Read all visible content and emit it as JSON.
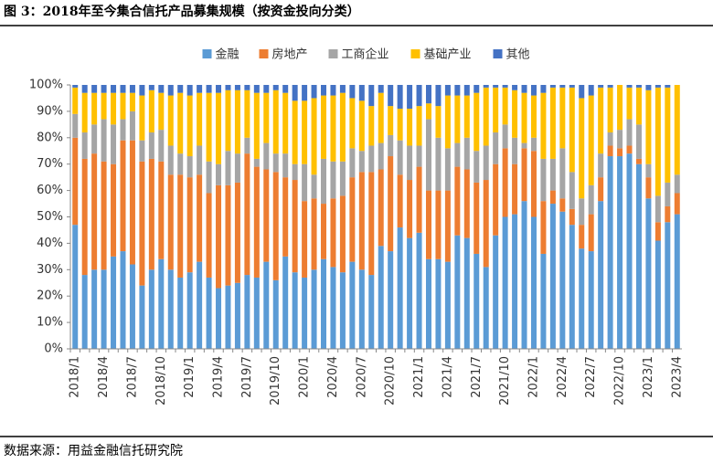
{
  "chart_data": {
    "type": "bar",
    "stacked": true,
    "title": "图 3：2018年至今集合信托产品募集规模（按资金投向分类）",
    "source": "数据来源：用益金融信托研究院",
    "legend": "top",
    "categories": [
      "2018/1",
      null,
      null,
      "2018/4",
      null,
      null,
      "2018/7",
      null,
      null,
      "2018/10",
      null,
      null,
      "2019/1",
      null,
      null,
      "2019/4",
      null,
      null,
      "2019/7",
      null,
      null,
      "2019/10",
      null,
      null,
      "2020/1",
      null,
      null,
      "2020/4",
      null,
      null,
      "2020/7",
      null,
      null,
      "2020/10",
      null,
      null,
      "2021/1",
      null,
      null,
      "2021/4",
      null,
      null,
      "2021/7",
      null,
      null,
      "2021/10",
      null,
      null,
      "2022/1",
      null,
      null,
      "2022/4",
      null,
      null,
      "2022/7",
      null,
      null,
      "2022/10",
      null,
      null,
      "2023/1",
      null,
      null,
      "2023/4"
    ],
    "ylim": [
      0,
      100
    ],
    "yticks": [
      {
        "value": 0,
        "label": "0%"
      },
      {
        "value": 10,
        "label": "10%"
      },
      {
        "value": 20,
        "label": "20%"
      },
      {
        "value": 30,
        "label": "30%"
      },
      {
        "value": 40,
        "label": "40%"
      },
      {
        "value": 50,
        "label": "50%"
      },
      {
        "value": 60,
        "label": "60%"
      },
      {
        "value": 70,
        "label": "70%"
      },
      {
        "value": 80,
        "label": "80%"
      },
      {
        "value": 90,
        "label": "90%"
      },
      {
        "value": 100,
        "label": "100%"
      }
    ],
    "series": [
      {
        "name": "金融",
        "color": "#5b9bd5",
        "values": [
          47,
          28,
          30,
          30,
          35,
          37,
          32,
          24,
          30,
          34,
          30,
          27,
          29,
          33,
          27,
          23,
          24,
          25,
          28,
          27,
          33,
          26,
          35,
          29,
          27,
          30,
          34,
          31,
          29,
          33,
          30,
          28,
          39,
          37,
          46,
          42,
          44,
          34,
          34,
          33,
          43,
          42,
          36,
          31,
          43,
          50,
          51,
          56,
          50,
          36,
          55,
          52,
          47,
          38,
          37,
          56,
          73,
          73,
          74,
          70,
          57,
          41,
          48,
          51
        ]
      },
      {
        "name": "房地产",
        "color": "#ed7d31",
        "values": [
          33,
          44,
          44,
          41,
          35,
          42,
          47,
          47,
          42,
          37,
          36,
          39,
          36,
          33,
          32,
          39,
          38,
          38,
          46,
          42,
          35,
          41,
          30,
          35,
          29,
          27,
          21,
          26,
          29,
          32,
          37,
          39,
          29,
          36,
          20,
          22,
          25,
          26,
          26,
          27,
          26,
          26,
          27,
          33,
          27,
          26,
          19,
          20,
          25,
          20,
          5,
          5,
          6,
          9,
          14,
          9,
          4,
          3,
          3,
          2,
          8,
          7,
          6,
          8
        ]
      },
      {
        "name": "工商企业",
        "color": "#a5a5a5",
        "values": [
          9,
          10,
          11,
          16,
          15,
          8,
          11,
          8,
          10,
          12,
          11,
          8,
          8,
          11,
          12,
          8,
          13,
          11,
          6,
          3,
          10,
          7,
          9,
          6,
          14,
          9,
          17,
          14,
          13,
          11,
          8,
          10,
          10,
          8,
          13,
          13,
          8,
          27,
          20,
          16,
          9,
          12,
          12,
          13,
          12,
          9,
          10,
          2,
          5,
          16,
          12,
          19,
          14,
          10,
          11,
          9,
          5,
          7,
          10,
          13,
          5,
          10,
          9,
          7
        ]
      },
      {
        "name": "基础产业",
        "color": "#ffc000",
        "values": [
          10,
          15,
          12,
          10,
          12,
          10,
          7,
          17,
          16,
          14,
          19,
          23,
          23,
          20,
          26,
          27,
          23,
          24,
          18,
          25,
          19,
          24,
          23,
          24,
          24,
          29,
          24,
          25,
          26,
          19,
          19,
          15,
          19,
          11,
          12,
          14,
          15,
          6,
          12,
          20,
          18,
          16,
          22,
          22,
          17,
          14,
          18,
          19,
          16,
          25,
          27,
          23,
          32,
          38,
          34,
          25,
          17,
          17,
          12,
          14,
          28,
          41,
          36,
          34
        ]
      },
      {
        "name": "其他",
        "color": "#4472c4",
        "values": [
          1,
          3,
          3,
          3,
          3,
          3,
          3,
          4,
          2,
          3,
          4,
          3,
          4,
          3,
          3,
          3,
          2,
          2,
          2,
          3,
          3,
          2,
          3,
          6,
          6,
          5,
          4,
          4,
          3,
          5,
          6,
          8,
          3,
          8,
          9,
          9,
          8,
          7,
          8,
          4,
          4,
          4,
          3,
          1,
          1,
          1,
          2,
          3,
          4,
          3,
          1,
          1,
          1,
          5,
          4,
          1,
          1,
          0,
          1,
          1,
          2,
          1,
          1,
          0
        ]
      }
    ]
  }
}
